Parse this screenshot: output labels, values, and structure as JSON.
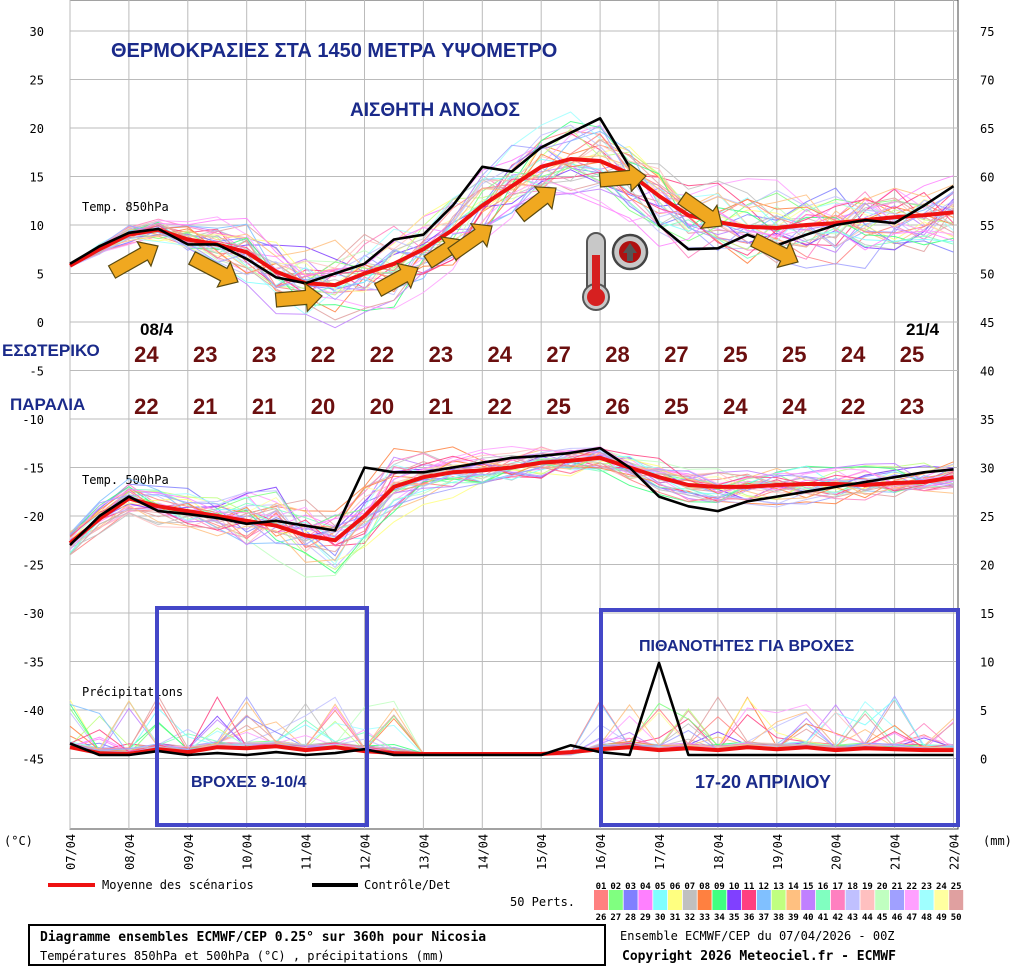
{
  "chart_data": {
    "type": "line",
    "title_main": "ΘΕΡΜΟΚΡΑΣΙΕΣ ΣΤΑ 1450 ΜΕΤΡΑ ΥΨΟΜΕΤΡΟ",
    "annotation_rise": "ΑΙΣΘΗΤΗ ΑΝΟΔΟΣ",
    "left_axis_unit": "(°C)",
    "right_axis_unit": "(mm)",
    "left_ticks": [
      "30",
      "25",
      "20",
      "15",
      "10",
      "5",
      "0",
      "-5",
      "-10",
      "-15",
      "-20",
      "-25",
      "-30",
      "-35",
      "-40",
      "-45"
    ],
    "right_ticks": [
      "75",
      "70",
      "65",
      "60",
      "55",
      "50",
      "45",
      "40",
      "35",
      "30",
      "25",
      "20",
      "15",
      "10",
      "5",
      "0"
    ],
    "x_labels": [
      "07/04",
      "08/04",
      "09/04",
      "10/04",
      "11/04",
      "12/04",
      "13/04",
      "14/04",
      "15/04",
      "16/04",
      "17/04",
      "18/04",
      "19/04",
      "20/04",
      "21/04",
      "22/04"
    ],
    "panel_labels": {
      "t850": "Temp. 850hPa",
      "t500": "Temp. 500hPa",
      "precip": "Précipitations"
    },
    "date_marks": {
      "start": "08/4",
      "end": "21/4"
    },
    "row_inland_label": "ΕΣΩΤΕΡΙΚΟ",
    "row_coast_label": "ΠΑΡΑΛΙΑ",
    "inland_temps": [
      "24",
      "23",
      "23",
      "22",
      "22",
      "23",
      "24",
      "27",
      "28",
      "27",
      "25",
      "25",
      "24",
      "25"
    ],
    "coast_temps": [
      "22",
      "21",
      "21",
      "20",
      "20",
      "21",
      "22",
      "25",
      "26",
      "25",
      "24",
      "24",
      "22",
      "23"
    ],
    "box_left_title": "ΒΡΟΧΕΣ 9-10/4",
    "box_right_title": "ΠΙΘΑΝΟΤΗΤΕΣ ΓΙΑ ΒΡΟΧΕΣ",
    "box_right_dates": "17-20 ΑΠΡΙΛΙΟΥ",
    "series": [
      {
        "name": "Moyenne des scénarios (850hPa)",
        "color": "#ee1111",
        "x": [
          0,
          0.5,
          1,
          1.5,
          2,
          2.5,
          3,
          3.5,
          4,
          4.5,
          5,
          5.5,
          6,
          6.5,
          7,
          7.5,
          8,
          8.5,
          9,
          9.5,
          10,
          10.5,
          11,
          11.5,
          12,
          12.5,
          13,
          13.5,
          14,
          14.5,
          15
        ],
        "values": [
          5.8,
          7.5,
          9.0,
          9.5,
          8.5,
          8.0,
          7.2,
          5.2,
          4.0,
          3.8,
          5.0,
          6.0,
          7.5,
          9.5,
          12.0,
          14.0,
          16.0,
          16.8,
          16.6,
          15.3,
          13.0,
          11.0,
          10.3,
          9.8,
          9.7,
          10.0,
          10.2,
          10.5,
          10.8,
          11.0,
          11.3
        ]
      },
      {
        "name": "Contrôle/Det (850hPa)",
        "color": "#000000",
        "x": [
          0,
          0.5,
          1,
          1.5,
          2,
          2.5,
          3,
          3.5,
          4,
          4.5,
          5,
          5.5,
          6,
          6.5,
          7,
          7.5,
          8,
          8.5,
          9,
          9.5,
          10,
          10.5,
          11,
          11.5,
          12,
          12.5,
          13,
          13.5,
          14,
          14.5,
          15
        ],
        "values": [
          6.0,
          7.8,
          9.2,
          9.6,
          8.0,
          8.0,
          6.5,
          4.6,
          4.0,
          5.0,
          6.0,
          8.5,
          9.0,
          12.0,
          16.0,
          15.5,
          18.0,
          19.5,
          21.0,
          16.0,
          10.0,
          7.5,
          7.6,
          9.0,
          7.9,
          9.0,
          10.0,
          10.5,
          10.2,
          12.0,
          14.0
        ]
      },
      {
        "name": "Moyenne des scénarios (500hPa)",
        "color": "#ee1111",
        "x": [
          0,
          0.5,
          1,
          1.5,
          2,
          2.5,
          3,
          3.5,
          4,
          4.5,
          5,
          5.5,
          6,
          6.5,
          7,
          7.5,
          8,
          8.5,
          9,
          9.5,
          10,
          10.5,
          11,
          11.5,
          12,
          12.5,
          13,
          13.5,
          14,
          14.5,
          15
        ],
        "values": [
          -22.8,
          -20.3,
          -18.2,
          -19.0,
          -19.5,
          -20.0,
          -20.5,
          -21.0,
          -22.0,
          -22.5,
          -20.0,
          -17.0,
          -16.0,
          -15.5,
          -15.3,
          -15.0,
          -14.5,
          -14.3,
          -14.0,
          -15.0,
          -16.0,
          -16.8,
          -17.0,
          -17.0,
          -16.8,
          -16.7,
          -16.7,
          -16.8,
          -16.6,
          -16.5,
          -16.0
        ]
      },
      {
        "name": "Contrôle/Det (500hPa)",
        "color": "#000000",
        "x": [
          0,
          0.5,
          1,
          1.5,
          2,
          2.5,
          3,
          3.5,
          4,
          4.5,
          5,
          5.5,
          6,
          6.5,
          7,
          7.5,
          8,
          8.5,
          9,
          9.5,
          10,
          10.5,
          11,
          11.5,
          12,
          12.5,
          13,
          13.5,
          14,
          14.5,
          15
        ],
        "values": [
          -23.0,
          -20.0,
          -18.0,
          -19.5,
          -19.8,
          -20.2,
          -20.8,
          -20.5,
          -21.0,
          -21.5,
          -15.0,
          -15.5,
          -15.5,
          -15.0,
          -14.5,
          -14.0,
          -13.8,
          -13.5,
          -13.0,
          -15.0,
          -18.0,
          -19.0,
          -19.5,
          -18.5,
          -18.0,
          -17.5,
          -17.0,
          -16.5,
          -16.0,
          -15.5,
          -15.2
        ]
      },
      {
        "name": "Moyenne des scénarios (précip. mm)",
        "color": "#ee1111",
        "x": [
          0,
          0.5,
          1,
          1.5,
          2,
          2.5,
          3,
          3.5,
          4,
          4.5,
          5,
          5.5,
          6,
          6.5,
          7,
          7.5,
          8,
          8.5,
          9,
          9.5,
          10,
          10.5,
          11,
          11.5,
          12,
          12.5,
          13,
          13.5,
          14,
          14.5,
          15
        ],
        "values": [
          0.8,
          0.2,
          0.1,
          0.6,
          0.3,
          0.8,
          0.7,
          0.9,
          0.5,
          0.8,
          0.4,
          0.2,
          0.1,
          0.1,
          0.1,
          0.1,
          0.1,
          0.3,
          0.6,
          0.8,
          0.5,
          0.7,
          0.5,
          0.8,
          0.6,
          0.8,
          0.5,
          0.7,
          0.6,
          0.5,
          0.5
        ]
      },
      {
        "name": "Contrôle/Det (précip. mm)",
        "color": "#000000",
        "x": [
          0,
          0.5,
          1,
          1.5,
          2,
          2.5,
          3,
          3.5,
          4,
          4.5,
          5,
          5.5,
          6,
          6.5,
          7,
          7.5,
          8,
          8.5,
          9,
          9.5,
          10,
          10.5,
          11,
          11.5,
          12,
          12.5,
          13,
          13.5,
          14,
          14.5,
          15
        ],
        "values": [
          1.2,
          0.0,
          0.0,
          0.4,
          0.0,
          0.2,
          0.0,
          0.3,
          0.0,
          0.2,
          0.6,
          0.0,
          0.0,
          0.0,
          0.0,
          0.0,
          0.0,
          1.0,
          0.3,
          0.0,
          9.5,
          0.0,
          0.0,
          0.0,
          0.0,
          0.0,
          0.0,
          0.0,
          0.0,
          0.0,
          0.0
        ]
      }
    ],
    "legend": {
      "mean": "Moyenne des scénarios",
      "control": "Contrôle/Det",
      "perts": "50 Perts."
    },
    "member_row1": [
      "01",
      "02",
      "03",
      "04",
      "05",
      "06",
      "07",
      "08",
      "09",
      "10",
      "11",
      "12",
      "13",
      "14",
      "15",
      "16",
      "17",
      "18",
      "19",
      "20",
      "21",
      "22",
      "23",
      "24",
      "25"
    ],
    "member_row2": [
      "26",
      "27",
      "28",
      "29",
      "30",
      "31",
      "32",
      "33",
      "34",
      "35",
      "36",
      "37",
      "38",
      "39",
      "40",
      "41",
      "42",
      "43",
      "44",
      "45",
      "46",
      "47",
      "48",
      "49",
      "50"
    ],
    "member_colors": [
      "#ff8080",
      "#80ff80",
      "#8080ff",
      "#ff80ff",
      "#80ffff",
      "#ffff80",
      "#c0c0c0",
      "#ff8040",
      "#40ff80",
      "#8040ff",
      "#ff4080",
      "#80c0ff",
      "#c0ff80",
      "#ffc080",
      "#c080ff",
      "#80ffc0",
      "#ff80c0",
      "#c0c0ff",
      "#ffc0c0",
      "#c0ffc0",
      "#a0a0ff",
      "#ffa0ff",
      "#a0ffff",
      "#ffffa0",
      "#e0a0a0"
    ],
    "footer_title": "Diagramme ensembles ECMWF/CEP 0.25° sur 360h pour Nicosia",
    "footer_subtitle": "Températures 850hPa et 500hPa (°C) , précipitations (mm)",
    "footer_run": "Ensemble ECMWF/CEP du 07/04/2026 - 00Z",
    "footer_copyright": "Copyright 2026 Meteociel.fr - ECMWF"
  },
  "colors": {
    "mean": "#ee1111",
    "control": "#000000",
    "arrow": "#f0a820",
    "annotation": "#1a2a8a",
    "box": "#4447c8",
    "city_temp": "#6b0f0f"
  }
}
